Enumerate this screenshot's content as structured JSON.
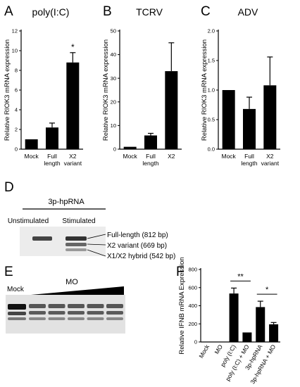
{
  "panels": {
    "A": "A",
    "B": "B",
    "C": "C",
    "D": "D",
    "E": "E",
    "F": "F"
  },
  "chart_data": [
    {
      "id": "A",
      "type": "bar",
      "title": "poly(I:C)",
      "ylabel": "Relative RIOK3 mRNA expression",
      "categories": [
        "Mock",
        "Full length",
        "X2 variant"
      ],
      "cat_lines": [
        [
          "Mock"
        ],
        [
          "Full",
          "length"
        ],
        [
          "X2",
          "variant"
        ]
      ],
      "values": [
        1.0,
        2.2,
        8.8
      ],
      "errors": [
        0,
        0.45,
        1.0
      ],
      "ylim": [
        0,
        12
      ],
      "yticks": [
        0,
        2,
        4,
        6,
        8,
        10,
        12
      ],
      "annotations": [
        {
          "index": 2,
          "text": "*"
        }
      ]
    },
    {
      "id": "B",
      "type": "bar",
      "title": "TCRV",
      "ylabel": "Relative RIOK3 mRNA expression",
      "categories": [
        "Mock",
        "Full length",
        "X2"
      ],
      "cat_lines": [
        [
          "Mock"
        ],
        [
          "Full",
          "length"
        ],
        [
          "X2"
        ]
      ],
      "values": [
        1.0,
        5.8,
        33.0
      ],
      "errors": [
        0,
        0.9,
        12.0
      ],
      "ylim": [
        0,
        50
      ],
      "yticks": [
        0,
        10,
        20,
        30,
        40,
        50
      ],
      "annotations": []
    },
    {
      "id": "C",
      "type": "bar",
      "title": "ADV",
      "ylabel": "Relative RIOK3 mRNA expression",
      "categories": [
        "Mock",
        "Full length",
        "X2 variant"
      ],
      "cat_lines": [
        [
          "Mock"
        ],
        [
          "Full",
          "length"
        ],
        [
          "X2",
          "variant"
        ]
      ],
      "values": [
        1.0,
        0.68,
        1.08
      ],
      "errors": [
        0,
        0.2,
        0.48
      ],
      "ylim": [
        0,
        2.0
      ],
      "yticks": [
        "0.0",
        "0.5",
        "1.0",
        "1.5",
        "2.0"
      ],
      "annotations": []
    },
    {
      "id": "F",
      "type": "bar",
      "title": "",
      "ylabel": "Relative IFNB mRNA Expression",
      "categories": [
        "Mock",
        "MO",
        "poly (I:C)",
        "poly (I:C) + MO",
        "3p-hpRNA",
        "3p-hpRNA + MO"
      ],
      "values": [
        0,
        0,
        535,
        105,
        385,
        195
      ],
      "errors": [
        0,
        0,
        60,
        0,
        65,
        20
      ],
      "ylim": [
        0,
        800
      ],
      "yticks": [
        0,
        200,
        400,
        600,
        800
      ],
      "significance": [
        {
          "from": 2,
          "to": 3,
          "text": "**"
        },
        {
          "from": 4,
          "to": 5,
          "text": "*"
        }
      ]
    }
  ],
  "gel_d": {
    "header": "3p-hpRNA",
    "lane_labels": [
      "Unstimulated",
      "Stimulated"
    ],
    "band_labels": [
      "Full-length (812 bp)",
      "X2 variant (669 bp)",
      "X1/X2 hybrid (542 bp)"
    ]
  },
  "gel_e": {
    "mock_label": "Mock",
    "mo_label": "MO"
  }
}
